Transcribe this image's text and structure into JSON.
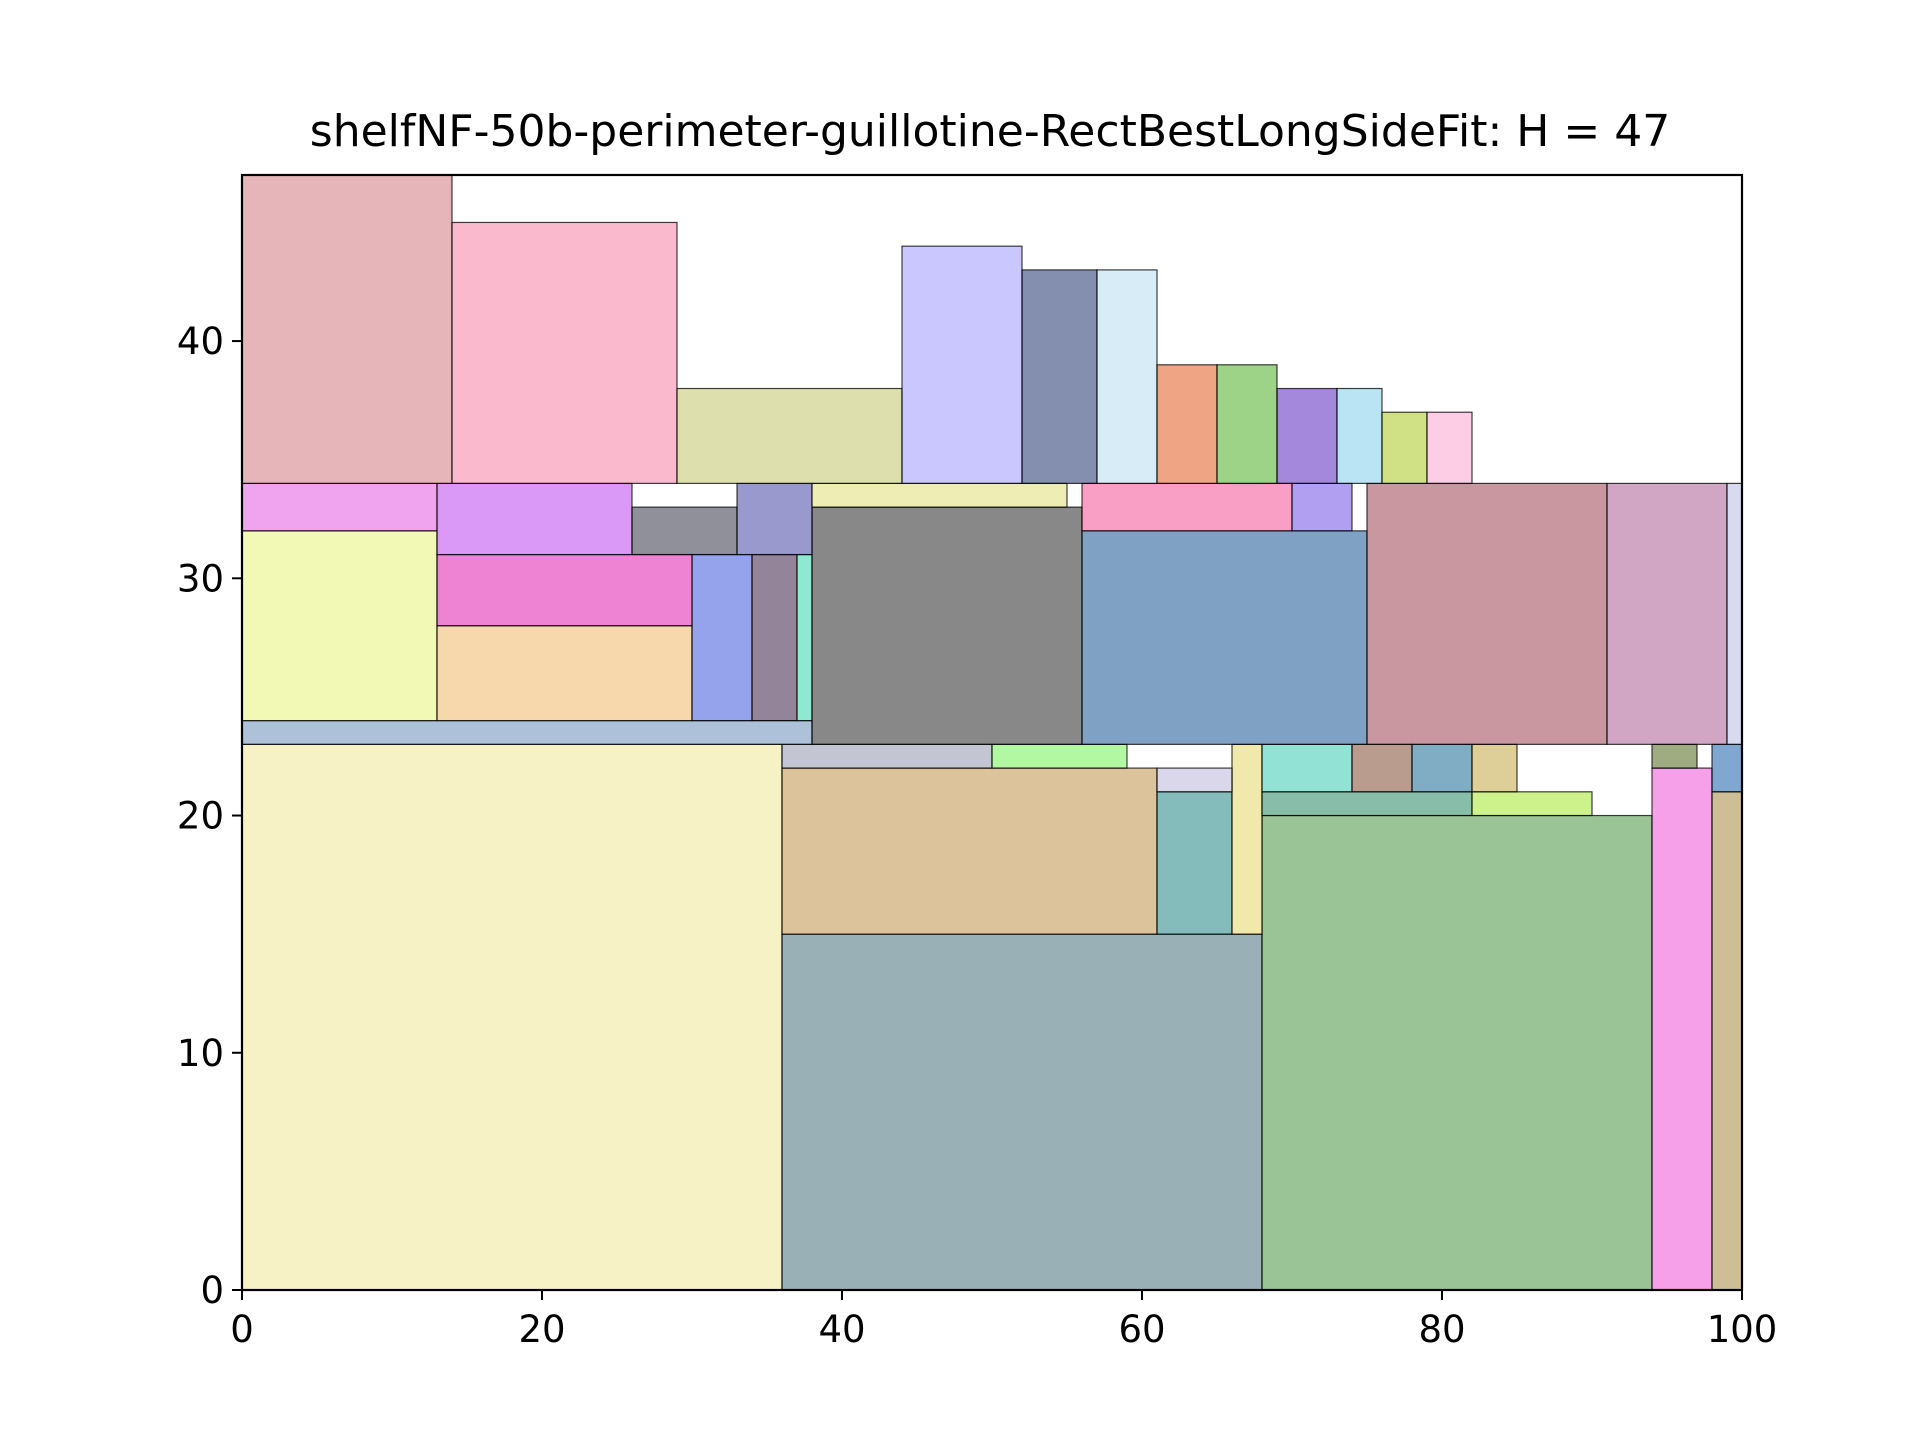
{
  "chart_data": {
    "type": "rectangle-packing",
    "title": "shelfNF-50b-perimeter-guillotine-RectBestLongSideFit: H = 47",
    "xlabel": "",
    "ylabel": "",
    "xlim": [
      0,
      100
    ],
    "ylim": [
      0,
      47
    ],
    "grid": false,
    "x_ticks": [
      {
        "value": 0,
        "label": "0"
      },
      {
        "value": 20,
        "label": "20"
      },
      {
        "value": 40,
        "label": "40"
      },
      {
        "value": 60,
        "label": "60"
      },
      {
        "value": 80,
        "label": "80"
      },
      {
        "value": 100,
        "label": "100"
      }
    ],
    "y_ticks": [
      {
        "value": 0,
        "label": "0"
      },
      {
        "value": 10,
        "label": "10"
      },
      {
        "value": 20,
        "label": "20"
      },
      {
        "value": 30,
        "label": "30"
      },
      {
        "value": 40,
        "label": "40"
      }
    ],
    "rectangles": [
      {
        "x": 0,
        "y": 0,
        "w": 36,
        "h": 23,
        "color": "#f0e68c"
      },
      {
        "x": 36,
        "y": 0,
        "w": 32,
        "h": 15,
        "color": "#34616f"
      },
      {
        "x": 68,
        "y": 0,
        "w": 26,
        "h": 20,
        "color": "#358a2e"
      },
      {
        "x": 94,
        "y": 0,
        "w": 4,
        "h": 22,
        "color": "#ee42d6"
      },
      {
        "x": 98,
        "y": 0,
        "w": 2,
        "h": 21,
        "color": "#9c7d2d"
      },
      {
        "x": 36,
        "y": 15,
        "w": 25,
        "h": 7,
        "color": "#bc8838"
      },
      {
        "x": 61,
        "y": 15,
        "w": 5,
        "h": 6,
        "color": "#097a7a"
      },
      {
        "x": 66,
        "y": 15,
        "w": 2,
        "h": 8,
        "color": "#e3d35a"
      },
      {
        "x": 68,
        "y": 20,
        "w": 14,
        "h": 1,
        "color": "#127e54"
      },
      {
        "x": 82,
        "y": 20,
        "w": 8,
        "h": 1,
        "color": "#9ce61a"
      },
      {
        "x": 61,
        "y": 21,
        "w": 5,
        "h": 1,
        "color": "#b7b0d6"
      },
      {
        "x": 68,
        "y": 21,
        "w": 6,
        "h": 2,
        "color": "#28c6ae"
      },
      {
        "x": 74,
        "y": 21,
        "w": 4,
        "h": 2,
        "color": "#743a1d"
      },
      {
        "x": 78,
        "y": 21,
        "w": 4,
        "h": 2,
        "color": "#035b8a"
      },
      {
        "x": 82,
        "y": 21,
        "w": 3,
        "h": 2,
        "color": "#bca030"
      },
      {
        "x": 94,
        "y": 22,
        "w": 3,
        "h": 1,
        "color": "#3f5a06"
      },
      {
        "x": 98,
        "y": 21,
        "w": 2,
        "h": 2,
        "color": "#0050a0"
      },
      {
        "x": 36,
        "y": 22,
        "w": 14,
        "h": 1,
        "color": "#8a8ba8"
      },
      {
        "x": 50,
        "y": 22,
        "w": 9,
        "h": 1,
        "color": "#66f248"
      },
      {
        "x": 0,
        "y": 23,
        "w": 38,
        "h": 1,
        "color": "#5c86b2"
      },
      {
        "x": 0,
        "y": 24,
        "w": 13,
        "h": 8,
        "color": "#e6f46a"
      },
      {
        "x": 13,
        "y": 24,
        "w": 17,
        "h": 4,
        "color": "#eeb25a"
      },
      {
        "x": 30,
        "y": 24,
        "w": 4,
        "h": 7,
        "color": "#2c45d9"
      },
      {
        "x": 34,
        "y": 24,
        "w": 3,
        "h": 7,
        "color": "#2a0a33"
      },
      {
        "x": 37,
        "y": 24,
        "w": 1,
        "h": 7,
        "color": "#20d4a4"
      },
      {
        "x": 38,
        "y": 23,
        "w": 18,
        "h": 10,
        "color": "#111111"
      },
      {
        "x": 56,
        "y": 23,
        "w": 19,
        "h": 9,
        "color": "#004487"
      },
      {
        "x": 75,
        "y": 23,
        "w": 16,
        "h": 11,
        "color": "#93303f"
      },
      {
        "x": 91,
        "y": 23,
        "w": 8,
        "h": 11,
        "color": "#a34d8c"
      },
      {
        "x": 99,
        "y": 23,
        "w": 1,
        "h": 11,
        "color": "#b4b4e2"
      },
      {
        "x": 13,
        "y": 28,
        "w": 17,
        "h": 3,
        "color": "#de05a7"
      },
      {
        "x": 0,
        "y": 32,
        "w": 13,
        "h": 2,
        "color": "#e247de"
      },
      {
        "x": 13,
        "y": 31,
        "w": 13,
        "h": 3,
        "color": "#b633ef"
      },
      {
        "x": 26,
        "y": 31,
        "w": 7,
        "h": 2,
        "color": "#222237"
      },
      {
        "x": 33,
        "y": 31,
        "w": 5,
        "h": 3,
        "color": "#35349c"
      },
      {
        "x": 38,
        "y": 33,
        "w": 17,
        "h": 1,
        "color": "#dedb6a"
      },
      {
        "x": 56,
        "y": 32,
        "w": 14,
        "h": 2,
        "color": "#f33e8b"
      },
      {
        "x": 70,
        "y": 32,
        "w": 4,
        "h": 2,
        "color": "#6441e4"
      },
      {
        "x": 0,
        "y": 34,
        "w": 14,
        "h": 13,
        "color": "#cb6b73"
      },
      {
        "x": 14,
        "y": 34,
        "w": 15,
        "h": 11,
        "color": "#f8739c"
      },
      {
        "x": 29,
        "y": 34,
        "w": 15,
        "h": 4,
        "color": "#bcc05c"
      },
      {
        "x": 44,
        "y": 34,
        "w": 8,
        "h": 10,
        "color": "#9390fd"
      },
      {
        "x": 52,
        "y": 34,
        "w": 5,
        "h": 9,
        "color": "#0a1f62"
      },
      {
        "x": 57,
        "y": 34,
        "w": 4,
        "h": 9,
        "color": "#b0d9ef"
      },
      {
        "x": 61,
        "y": 34,
        "w": 4,
        "h": 5,
        "color": "#df4b07"
      },
      {
        "x": 65,
        "y": 34,
        "w": 4,
        "h": 5,
        "color": "#39a80d"
      },
      {
        "x": 69,
        "y": 34,
        "w": 4,
        "h": 4,
        "color": "#4711b9"
      },
      {
        "x": 73,
        "y": 34,
        "w": 3,
        "h": 4,
        "color": "#76cae9"
      },
      {
        "x": 76,
        "y": 34,
        "w": 3,
        "h": 3,
        "color": "#a1c30b"
      },
      {
        "x": 79,
        "y": 34,
        "w": 3,
        "h": 3,
        "color": "#fb9ccb"
      }
    ]
  }
}
